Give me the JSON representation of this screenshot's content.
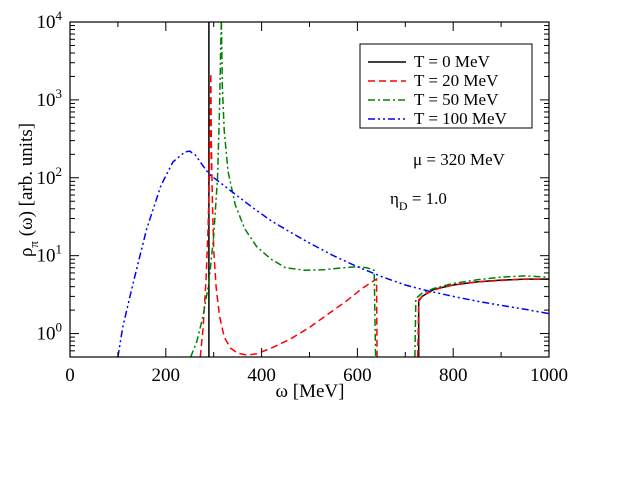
{
  "chart_data": {
    "type": "line",
    "title": "",
    "xlabel": "ω [MeV]",
    "ylabel_main": "ρ",
    "ylabel_sub": "π",
    "ylabel_rest": " (ω) [arb. units]",
    "xlim": [
      0,
      1000
    ],
    "ylim": [
      0.5,
      10000
    ],
    "yscale": "log",
    "grid": false,
    "legend_position": "top-right",
    "x_ticks": [
      0,
      200,
      400,
      600,
      800,
      1000
    ],
    "x_tick_labels": [
      "0",
      "200",
      "400",
      "600",
      "800",
      "1000"
    ],
    "y_ticks": [
      {
        "value": 1,
        "base": "10",
        "exp": "0"
      },
      {
        "value": 10,
        "base": "10",
        "exp": "1"
      },
      {
        "value": 100,
        "base": "10",
        "exp": "2"
      },
      {
        "value": 1000,
        "base": "10",
        "exp": "3"
      },
      {
        "value": 10000,
        "base": "10",
        "exp": "4"
      }
    ],
    "annotations": {
      "mu": "μ = 320 MeV",
      "eta_main": "η",
      "eta_sub": "D",
      "eta_rest": " = 1.0"
    },
    "series": [
      {
        "name": "T = 0 MeV",
        "color": "#000000",
        "dash": "solid",
        "segments": [
          [
            [
              290,
              0.5
            ],
            [
              290,
              10000
            ]
          ],
          [
            [
              728,
              0.5
            ],
            [
              728,
              2.6
            ],
            [
              735,
              3.0
            ],
            [
              760,
              3.7
            ],
            [
              800,
              4.2
            ],
            [
              850,
              4.6
            ],
            [
              900,
              4.85
            ],
            [
              950,
              5.0
            ],
            [
              1000,
              5.0
            ]
          ]
        ]
      },
      {
        "name": "T = 20 MeV",
        "color": "#ff0000",
        "dash": "dash",
        "segments": [
          [
            [
              272,
              0.5
            ],
            [
              278,
              1.2
            ],
            [
              284,
              5
            ],
            [
              288,
              20
            ],
            [
              291,
              100
            ],
            [
              293,
              700
            ],
            [
              294,
              2200
            ],
            [
              295,
              300
            ],
            [
              297,
              60
            ],
            [
              300,
              12
            ],
            [
              305,
              4
            ],
            [
              312,
              1.7
            ],
            [
              322,
              0.9
            ],
            [
              335,
              0.65
            ],
            [
              350,
              0.56
            ],
            [
              370,
              0.53
            ],
            [
              390,
              0.55
            ],
            [
              420,
              0.65
            ],
            [
              460,
              0.85
            ],
            [
              500,
              1.2
            ],
            [
              540,
              1.8
            ],
            [
              580,
              2.7
            ],
            [
              610,
              3.8
            ],
            [
              630,
              4.6
            ],
            [
              640,
              5.0
            ],
            [
              641,
              0.5
            ]
          ],
          [
            [
              726,
              0.5
            ],
            [
              728,
              2.7
            ],
            [
              740,
              3.2
            ],
            [
              770,
              3.8
            ],
            [
              800,
              4.2
            ],
            [
              850,
              4.6
            ],
            [
              900,
              4.8
            ],
            [
              950,
              5.0
            ],
            [
              1000,
              5.0
            ]
          ]
        ]
      },
      {
        "name": "T = 50 MeV",
        "color": "#008000",
        "dash": "dashdot",
        "segments": [
          [
            [
              252,
              0.5
            ],
            [
              265,
              0.8
            ],
            [
              278,
              1.7
            ],
            [
              290,
              4.5
            ],
            [
              300,
              18
            ],
            [
              308,
              100
            ],
            [
              312,
              700
            ],
            [
              315,
              6000
            ],
            [
              316,
              10000
            ]
          ],
          [
            [
              316,
              10000
            ],
            [
              318,
              1500
            ],
            [
              322,
              400
            ],
            [
              330,
              120
            ],
            [
              345,
              45
            ],
            [
              365,
              22
            ],
            [
              390,
              13
            ],
            [
              420,
              9
            ],
            [
              450,
              7
            ],
            [
              490,
              6.5
            ],
            [
              530,
              6.6
            ],
            [
              570,
              7
            ],
            [
              600,
              7.2
            ],
            [
              620,
              7
            ],
            [
              635,
              6.5
            ],
            [
              638,
              0.5
            ]
          ],
          [
            [
              720,
              0.5
            ],
            [
              722,
              2.8
            ],
            [
              735,
              3.3
            ],
            [
              760,
              3.8
            ],
            [
              800,
              4.4
            ],
            [
              850,
              4.9
            ],
            [
              900,
              5.3
            ],
            [
              950,
              5.5
            ],
            [
              1000,
              5.3
            ]
          ]
        ]
      },
      {
        "name": "T = 100 MeV",
        "color": "#0000ff",
        "dash": "dashdotdot",
        "segments": [
          [
            [
              100,
              0.5
            ],
            [
              110,
              1.2
            ],
            [
              130,
              4
            ],
            [
              160,
              22
            ],
            [
              190,
              80
            ],
            [
              215,
              160
            ],
            [
              240,
              215
            ],
            [
              250,
              220
            ],
            [
              262,
              195
            ],
            [
              275,
              150
            ],
            [
              290,
              112
            ],
            [
              310,
              90
            ],
            [
              340,
              65
            ],
            [
              380,
              42
            ],
            [
              420,
              28
            ],
            [
              460,
              20
            ],
            [
              500,
              14.5
            ],
            [
              550,
              10
            ],
            [
              600,
              7.2
            ],
            [
              650,
              5.4
            ],
            [
              700,
              4.2
            ],
            [
              750,
              3.5
            ],
            [
              800,
              3.0
            ],
            [
              850,
              2.6
            ],
            [
              900,
              2.3
            ],
            [
              950,
              2.05
            ],
            [
              1000,
              1.8
            ]
          ]
        ]
      }
    ]
  }
}
